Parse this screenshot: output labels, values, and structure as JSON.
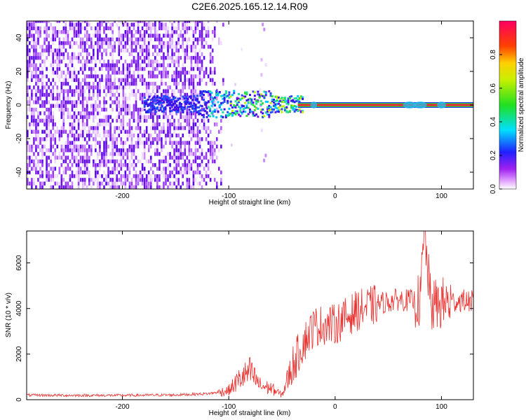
{
  "title": "C2E6.2025.165.12.14.R09",
  "colors": {
    "snr_line": "#e8312f",
    "band_core": "#e8312f",
    "band_edge": "#23c94a",
    "background": "#ffffff"
  },
  "chart_data": [
    {
      "type": "heatmap",
      "xlabel": "Height of straight line (km)",
      "ylabel": "Frequency (Hz)",
      "xlim": [
        -290,
        130
      ],
      "ylim": [
        -50,
        50
      ],
      "x_ticks": [
        -200,
        -100,
        0,
        100
      ],
      "y_ticks": [
        -40,
        -20,
        0,
        20,
        40
      ],
      "colorbar": {
        "label": "Normalized spectral amplitude",
        "range": [
          0.0,
          1.0
        ],
        "ticks": [
          0.0,
          0.2,
          0.4,
          0.6,
          0.8
        ],
        "colormap": "rainbow (magenta-blue-cyan-green-yellow-red)"
      },
      "features": {
        "noise_region_x": [
          -290,
          -110
        ],
        "signal_center_frequency_hz": 0,
        "signal_onset_x": -180,
        "steady_line_x": [
          -35,
          130
        ]
      }
    },
    {
      "type": "line",
      "xlabel": "Height of straight line (km)",
      "ylabel": "SNR (10 * v/v)",
      "xlim": [
        -290,
        130
      ],
      "ylim": [
        0,
        7400
      ],
      "x_ticks": [
        -200,
        -100,
        0,
        100
      ],
      "y_ticks": [
        0,
        2000,
        4000,
        6000
      ],
      "series": [
        {
          "x": [
            -290,
            -250,
            -200,
            -150,
            -120,
            -100,
            -90,
            -80,
            -70,
            -60,
            -50,
            -40,
            -30,
            -20,
            -10,
            0,
            20,
            40,
            60,
            80,
            84,
            90,
            100,
            110,
            120,
            130
          ],
          "values": [
            200,
            190,
            190,
            210,
            260,
            400,
            900,
            1200,
            600,
            500,
            200,
            1500,
            2500,
            3200,
            3300,
            3300,
            3900,
            4200,
            4400,
            4300,
            7400,
            4100,
            4200,
            4300,
            4350,
            4300
          ]
        }
      ]
    }
  ]
}
